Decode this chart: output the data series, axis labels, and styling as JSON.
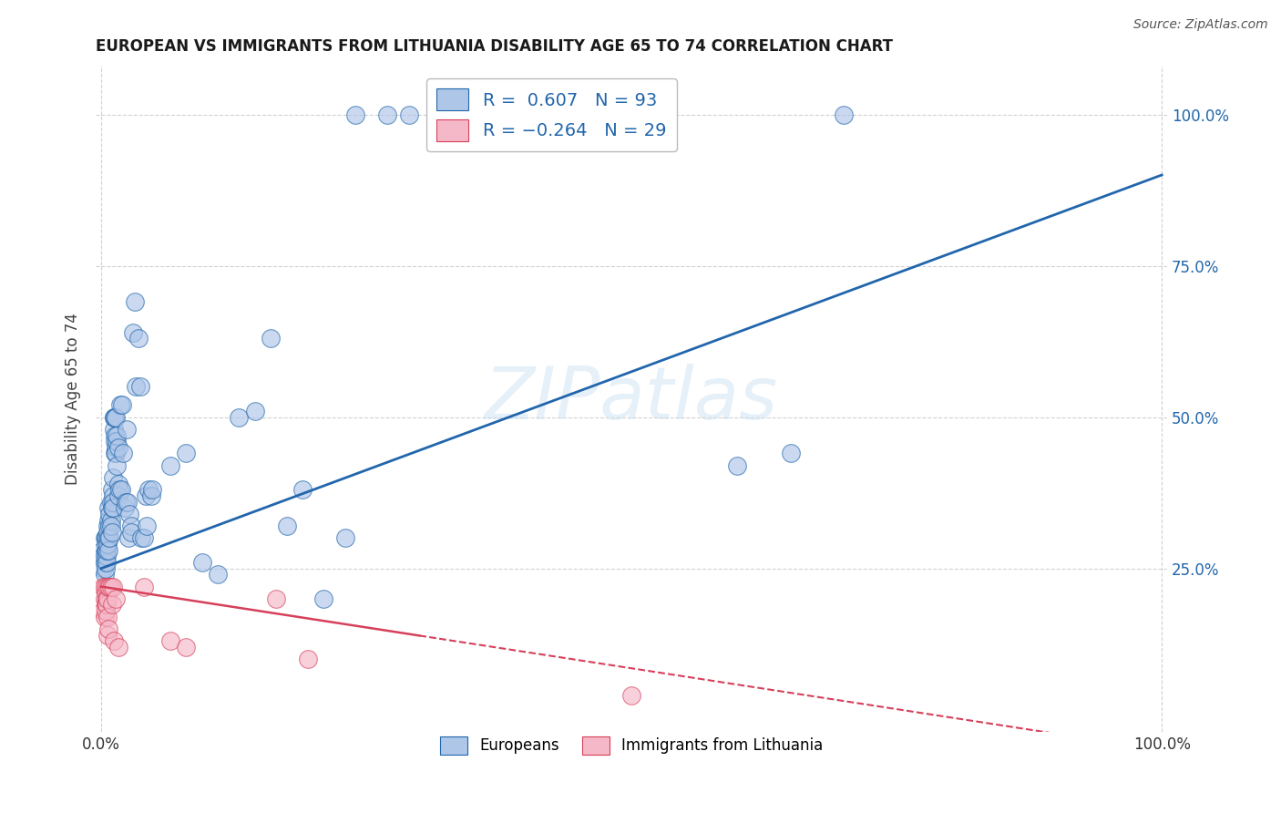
{
  "title": "EUROPEAN VS IMMIGRANTS FROM LITHUANIA DISABILITY AGE 65 TO 74 CORRELATION CHART",
  "source": "Source: ZipAtlas.com",
  "ylabel": "Disability Age 65 to 74",
  "watermark": "ZIPatlas",
  "legend_european": "Europeans",
  "legend_lithuania": "Immigrants from Lithuania",
  "R_european": 0.607,
  "N_european": 93,
  "R_lithuania": -0.264,
  "N_lithuania": 29,
  "european_color": "#aec6e8",
  "lithuania_color": "#f5b8c8",
  "trendline_european_color": "#2166ac",
  "trendline_lithuania_color": "#d6405a",
  "background_color": "#ffffff",
  "grid_color": "#cccccc",
  "european_points": [
    [
      0.001,
      0.28
    ],
    [
      0.002,
      0.25
    ],
    [
      0.002,
      0.27
    ],
    [
      0.003,
      0.24
    ],
    [
      0.003,
      0.26
    ],
    [
      0.003,
      0.3
    ],
    [
      0.003,
      0.27
    ],
    [
      0.004,
      0.25
    ],
    [
      0.004,
      0.28
    ],
    [
      0.004,
      0.3
    ],
    [
      0.004,
      0.29
    ],
    [
      0.005,
      0.27
    ],
    [
      0.005,
      0.26
    ],
    [
      0.005,
      0.3
    ],
    [
      0.005,
      0.28
    ],
    [
      0.006,
      0.32
    ],
    [
      0.006,
      0.29
    ],
    [
      0.006,
      0.31
    ],
    [
      0.007,
      0.33
    ],
    [
      0.007,
      0.3
    ],
    [
      0.007,
      0.28
    ],
    [
      0.007,
      0.35
    ],
    [
      0.008,
      0.32
    ],
    [
      0.008,
      0.34
    ],
    [
      0.008,
      0.3
    ],
    [
      0.009,
      0.36
    ],
    [
      0.009,
      0.33
    ],
    [
      0.009,
      0.32
    ],
    [
      0.01,
      0.35
    ],
    [
      0.01,
      0.31
    ],
    [
      0.01,
      0.38
    ],
    [
      0.011,
      0.37
    ],
    [
      0.011,
      0.36
    ],
    [
      0.011,
      0.4
    ],
    [
      0.011,
      0.35
    ],
    [
      0.012,
      0.5
    ],
    [
      0.012,
      0.48
    ],
    [
      0.012,
      0.5
    ],
    [
      0.013,
      0.5
    ],
    [
      0.013,
      0.47
    ],
    [
      0.013,
      0.46
    ],
    [
      0.013,
      0.44
    ],
    [
      0.014,
      0.5
    ],
    [
      0.014,
      0.45
    ],
    [
      0.014,
      0.44
    ],
    [
      0.015,
      0.42
    ],
    [
      0.015,
      0.46
    ],
    [
      0.015,
      0.47
    ],
    [
      0.016,
      0.39
    ],
    [
      0.016,
      0.45
    ],
    [
      0.016,
      0.37
    ],
    [
      0.017,
      0.38
    ],
    [
      0.018,
      0.52
    ],
    [
      0.019,
      0.38
    ],
    [
      0.02,
      0.52
    ],
    [
      0.021,
      0.44
    ],
    [
      0.022,
      0.35
    ],
    [
      0.023,
      0.36
    ],
    [
      0.024,
      0.48
    ],
    [
      0.025,
      0.36
    ],
    [
      0.026,
      0.3
    ],
    [
      0.027,
      0.34
    ],
    [
      0.028,
      0.32
    ],
    [
      0.028,
      0.31
    ],
    [
      0.03,
      0.64
    ],
    [
      0.032,
      0.69
    ],
    [
      0.033,
      0.55
    ],
    [
      0.035,
      0.63
    ],
    [
      0.037,
      0.55
    ],
    [
      0.038,
      0.3
    ],
    [
      0.04,
      0.3
    ],
    [
      0.042,
      0.37
    ],
    [
      0.043,
      0.32
    ],
    [
      0.045,
      0.38
    ],
    [
      0.047,
      0.37
    ],
    [
      0.048,
      0.38
    ],
    [
      0.065,
      0.42
    ],
    [
      0.08,
      0.44
    ],
    [
      0.095,
      0.26
    ],
    [
      0.11,
      0.24
    ],
    [
      0.13,
      0.5
    ],
    [
      0.145,
      0.51
    ],
    [
      0.16,
      0.63
    ],
    [
      0.175,
      0.32
    ],
    [
      0.19,
      0.38
    ],
    [
      0.21,
      0.2
    ],
    [
      0.23,
      0.3
    ],
    [
      0.24,
      1.0
    ],
    [
      0.27,
      1.0
    ],
    [
      0.29,
      1.0
    ],
    [
      0.6,
      0.42
    ],
    [
      0.65,
      0.44
    ],
    [
      0.7,
      1.0
    ]
  ],
  "lithuania_points": [
    [
      0.002,
      0.22
    ],
    [
      0.002,
      0.18
    ],
    [
      0.003,
      0.2
    ],
    [
      0.003,
      0.17
    ],
    [
      0.003,
      0.22
    ],
    [
      0.004,
      0.19
    ],
    [
      0.004,
      0.21
    ],
    [
      0.004,
      0.18
    ],
    [
      0.005,
      0.2
    ],
    [
      0.005,
      0.22
    ],
    [
      0.005,
      0.19
    ],
    [
      0.006,
      0.2
    ],
    [
      0.006,
      0.17
    ],
    [
      0.006,
      0.14
    ],
    [
      0.007,
      0.15
    ],
    [
      0.007,
      0.22
    ],
    [
      0.008,
      0.22
    ],
    [
      0.009,
      0.22
    ],
    [
      0.01,
      0.19
    ],
    [
      0.011,
      0.22
    ],
    [
      0.012,
      0.13
    ],
    [
      0.014,
      0.2
    ],
    [
      0.016,
      0.12
    ],
    [
      0.04,
      0.22
    ],
    [
      0.065,
      0.13
    ],
    [
      0.08,
      0.12
    ],
    [
      0.165,
      0.2
    ],
    [
      0.195,
      0.1
    ],
    [
      0.5,
      0.04
    ]
  ],
  "eu_trendline": [
    0.0,
    1.0,
    0.25,
    0.9
  ],
  "lt_trendline": [
    0.0,
    1.0,
    0.22,
    -0.05
  ]
}
